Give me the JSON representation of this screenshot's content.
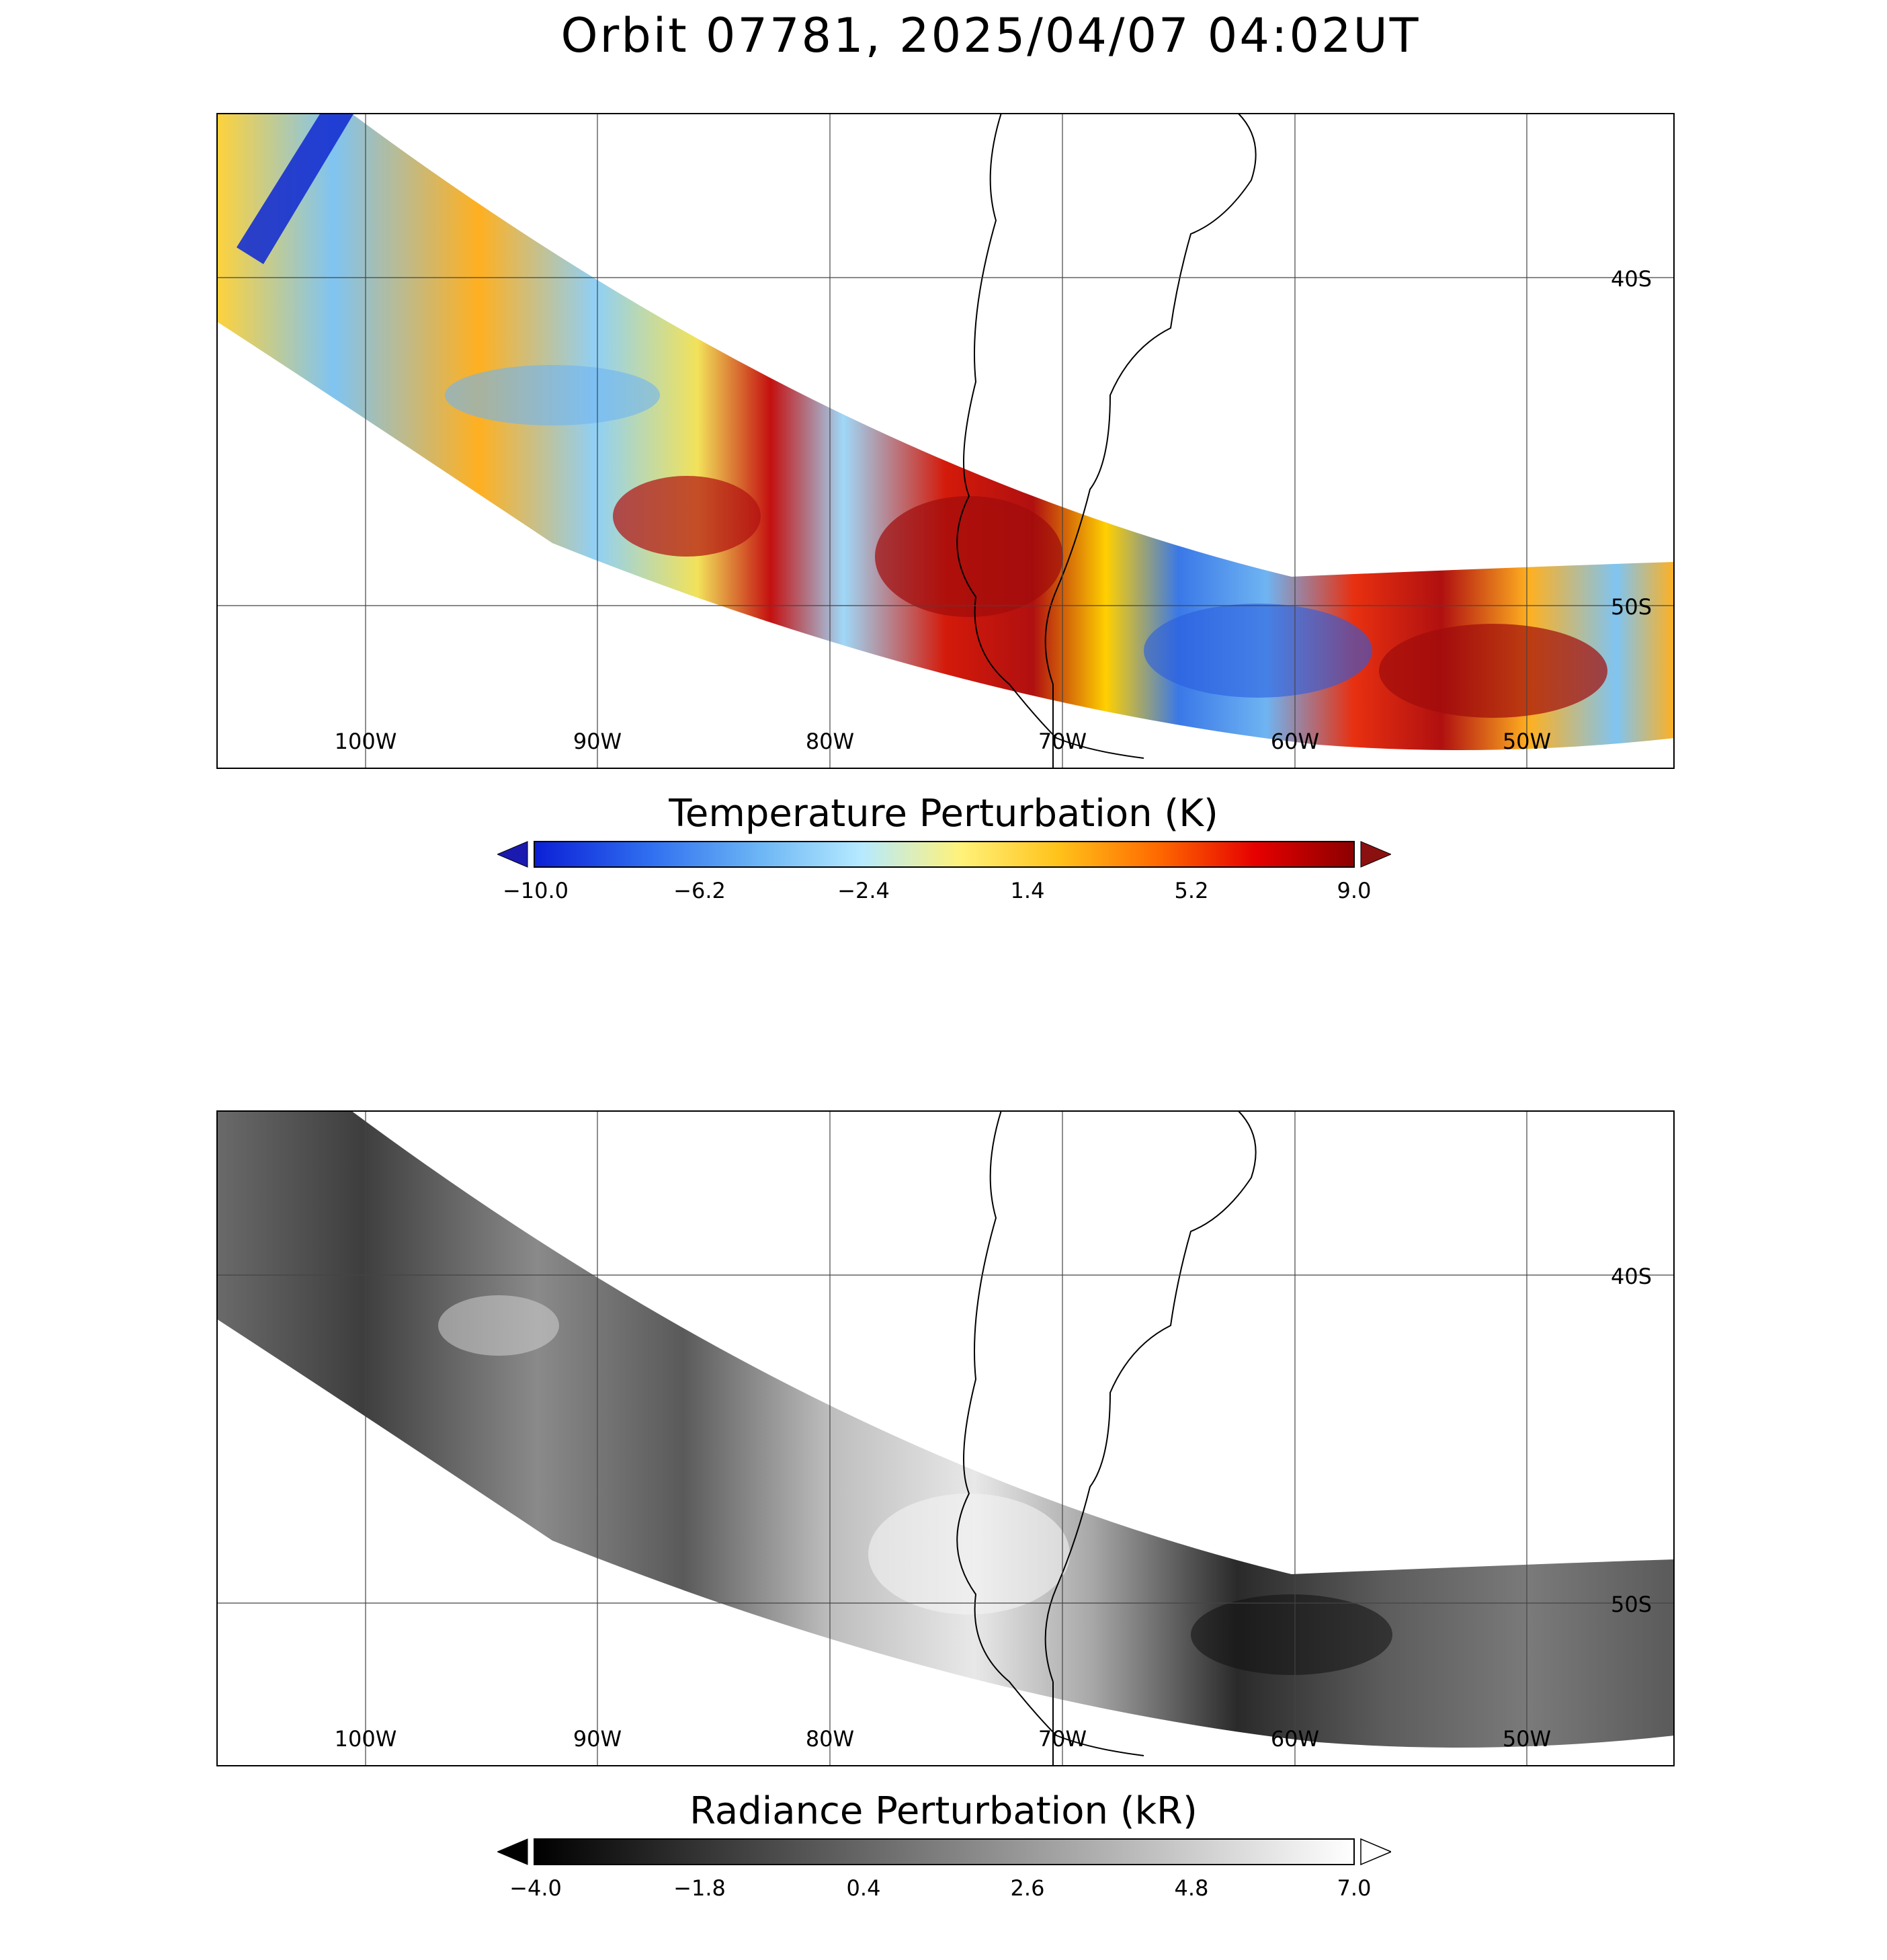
{
  "title": "Orbit 07781, 2025/04/07 04:02UT",
  "lon_labels": [
    "100W",
    "90W",
    "80W",
    "70W",
    "60W",
    "50W"
  ],
  "lat_labels": [
    "40S",
    "50S"
  ],
  "temperature_panel": {
    "colorbar_title": "Temperature Perturbation (K)",
    "ticks": [
      "−10.0",
      "−6.2",
      "−2.4",
      "1.4",
      "5.2",
      "9.0"
    ],
    "colors": {
      "min_arrow": "#1a1ab0",
      "max_arrow": "#8b1010",
      "stops": [
        "#0b1fd6",
        "#2f6ef0",
        "#6fb8f5",
        "#b6eaff",
        "#fff27a",
        "#ffc21a",
        "#ff6a00",
        "#e60000",
        "#8b0000"
      ]
    }
  },
  "radiance_panel": {
    "colorbar_title": "Radiance Perturbation (kR)",
    "ticks": [
      "−4.0",
      "−1.8",
      "0.4",
      "2.6",
      "4.8",
      "7.0"
    ],
    "colors": {
      "min_arrow": "#000000",
      "max_arrow": "#ffffff",
      "stops": [
        "#000000",
        "#ffffff"
      ]
    }
  }
}
